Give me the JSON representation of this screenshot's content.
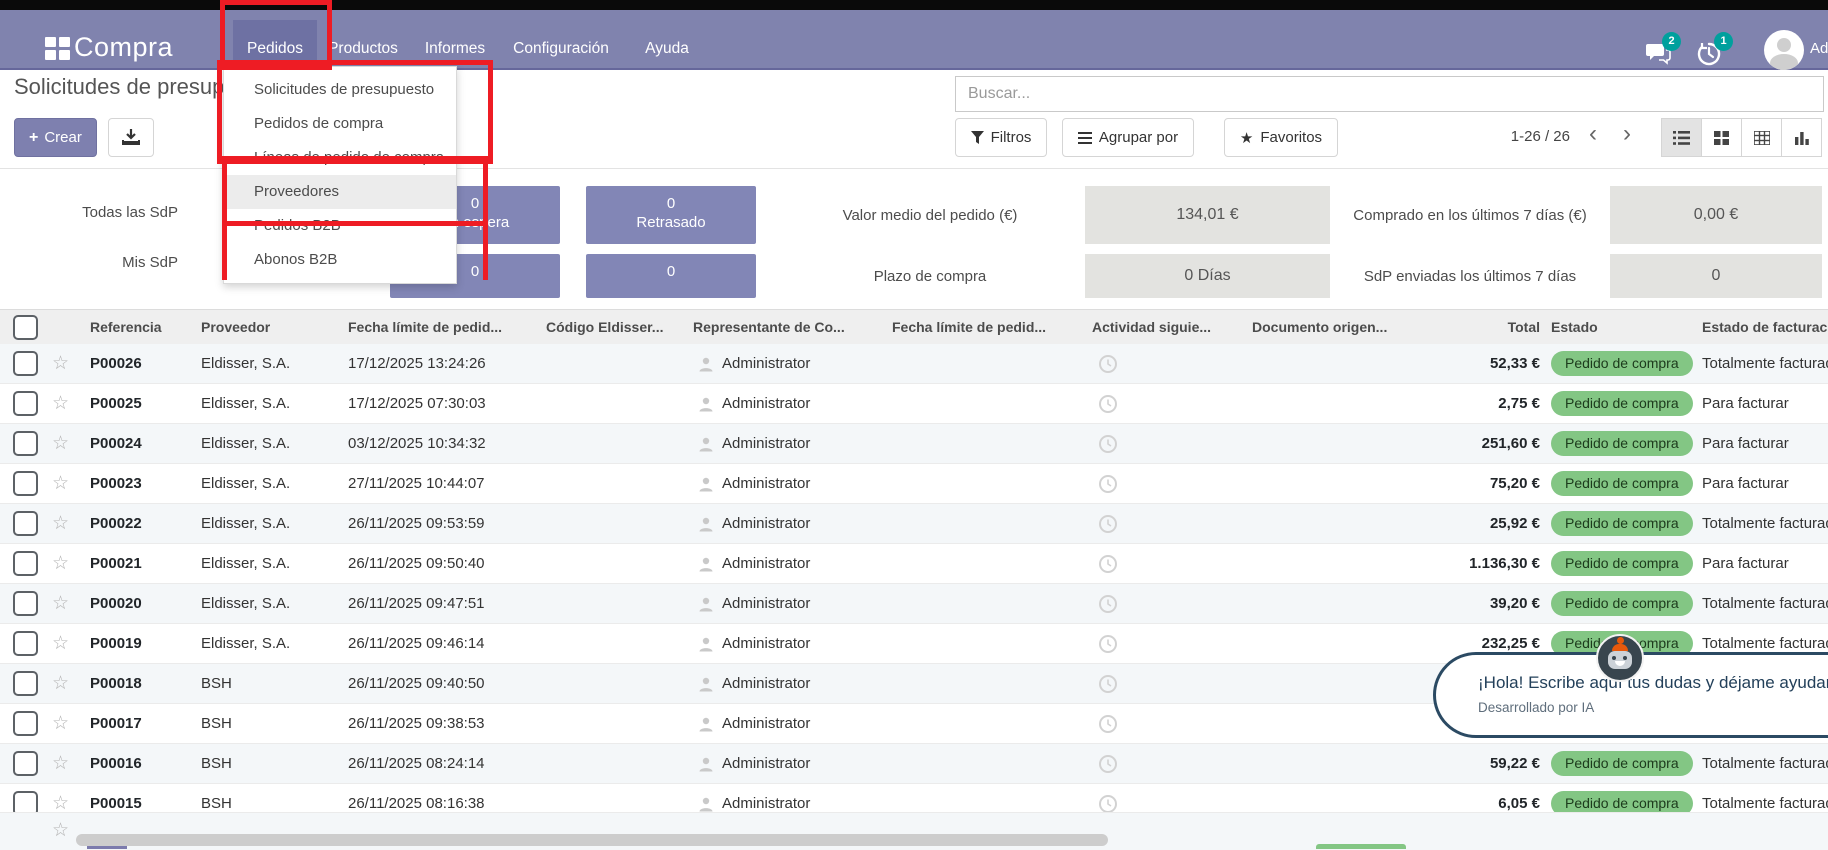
{
  "colors": {
    "navbar": "#8083ae",
    "active_tab": "#6e71a3",
    "annotation_red": "#ee1c24",
    "tile_purple": "#8286b6",
    "badge_green_bg": "#83c684",
    "notification_teal": "#00a09d",
    "metric_box_gray": "#e3e3e0",
    "chat_border": "#2b4a63"
  },
  "navbar": {
    "app_title": "Compra",
    "menu": [
      {
        "label": "Pedidos"
      },
      {
        "label": "Productos"
      },
      {
        "label": "Informes"
      },
      {
        "label": "Configuración"
      },
      {
        "label": "Ayuda"
      }
    ],
    "messages_badge": "2",
    "activities_badge": "1",
    "user_label": "Administrator"
  },
  "dropdown": {
    "items": [
      {
        "label": "Solicitudes de presupuesto"
      },
      {
        "label": "Pedidos de compra"
      },
      {
        "label": "Líneas de pedido de compra"
      },
      {
        "label": "Proveedores"
      },
      {
        "label": "Pedidos B2B"
      },
      {
        "label": "Abonos B2B"
      }
    ]
  },
  "page": {
    "title": "Solicitudes de presupuesto",
    "create_label": "Crear"
  },
  "search": {
    "placeholder": "Buscar...",
    "filters_label": "Filtros",
    "group_by_label": "Agrupar por",
    "favorites_label": "Favoritos",
    "pager": "1-26 / 26"
  },
  "dashboard": {
    "row_filters": [
      {
        "label": "Todas las SdP"
      },
      {
        "label": "Mis SdP"
      }
    ],
    "tiles_row1": [
      {
        "value": "0",
        "label": "En espera"
      },
      {
        "value": "0",
        "label": "Retrasado"
      }
    ],
    "tiles_row2": [
      {
        "value": "0"
      },
      {
        "value": "0"
      }
    ],
    "metrics": [
      {
        "label": "Valor medio del pedido (€)",
        "value": "134,01 €"
      },
      {
        "label": "Comprado en los últimos 7 días (€)",
        "value": "0,00 €"
      },
      {
        "label": "Plazo de compra",
        "value": "0 Días"
      },
      {
        "label": "SdP enviadas los últimos 7 días",
        "value": "0"
      }
    ]
  },
  "table": {
    "columns": [
      "Referencia",
      "Proveedor",
      "Fecha límite de pedid...",
      "Código Eldisser...",
      "Representante de Co...",
      "Fecha límite de pedid...",
      "Actividad siguie...",
      "Documento origen...",
      "Total",
      "Estado",
      "Estado de facturación"
    ],
    "rows": [
      {
        "ref": "P00026",
        "vendor": "Eldisser, S.A.",
        "date": "17/12/2025 13:24:26",
        "rep": "Administrator",
        "total": "52,33 €",
        "state": "Pedido de compra",
        "billing": "Totalmente facturado"
      },
      {
        "ref": "P00025",
        "vendor": "Eldisser, S.A.",
        "date": "17/12/2025 07:30:03",
        "rep": "Administrator",
        "total": "2,75 €",
        "state": "Pedido de compra",
        "billing": "Para facturar"
      },
      {
        "ref": "P00024",
        "vendor": "Eldisser, S.A.",
        "date": "03/12/2025 10:34:32",
        "rep": "Administrator",
        "total": "251,60 €",
        "state": "Pedido de compra",
        "billing": "Para facturar"
      },
      {
        "ref": "P00023",
        "vendor": "Eldisser, S.A.",
        "date": "27/11/2025 10:44:07",
        "rep": "Administrator",
        "total": "75,20 €",
        "state": "Pedido de compra",
        "billing": "Para facturar"
      },
      {
        "ref": "P00022",
        "vendor": "Eldisser, S.A.",
        "date": "26/11/2025 09:53:59",
        "rep": "Administrator",
        "total": "25,92 €",
        "state": "Pedido de compra",
        "billing": "Totalmente facturado"
      },
      {
        "ref": "P00021",
        "vendor": "Eldisser, S.A.",
        "date": "26/11/2025 09:50:40",
        "rep": "Administrator",
        "total": "1.136,30 €",
        "state": "Pedido de compra",
        "billing": "Para facturar"
      },
      {
        "ref": "P00020",
        "vendor": "Eldisser, S.A.",
        "date": "26/11/2025 09:47:51",
        "rep": "Administrator",
        "total": "39,20 €",
        "state": "Pedido de compra",
        "billing": "Totalmente facturado"
      },
      {
        "ref": "P00019",
        "vendor": "Eldisser, S.A.",
        "date": "26/11/2025 09:46:14",
        "rep": "Administrator",
        "total": "232,25 €",
        "state": "Pedido de compra",
        "billing": "Totalmente facturado"
      },
      {
        "ref": "P00018",
        "vendor": "BSH",
        "date": "26/11/2025 09:40:50",
        "rep": "Administrator",
        "total": "",
        "state": "",
        "billing": ""
      },
      {
        "ref": "P00017",
        "vendor": "BSH",
        "date": "26/11/2025 09:38:53",
        "rep": "Administrator",
        "total": "",
        "state": "",
        "billing": ""
      },
      {
        "ref": "P00016",
        "vendor": "BSH",
        "date": "26/11/2025 08:24:14",
        "rep": "Administrator",
        "total": "59,22 €",
        "state": "Pedido de compra",
        "billing": "Totalmente facturado"
      },
      {
        "ref": "P00015",
        "vendor": "BSH",
        "date": "26/11/2025 08:16:38",
        "rep": "Administrator",
        "total": "6,05 €",
        "state": "Pedido de compra",
        "billing": "Totalmente facturado"
      }
    ]
  },
  "chatbot": {
    "greeting": "¡Hola! Escribe aquí tus dudas y déjame ayudarte",
    "powered_by": "Desarrollado por IA"
  }
}
